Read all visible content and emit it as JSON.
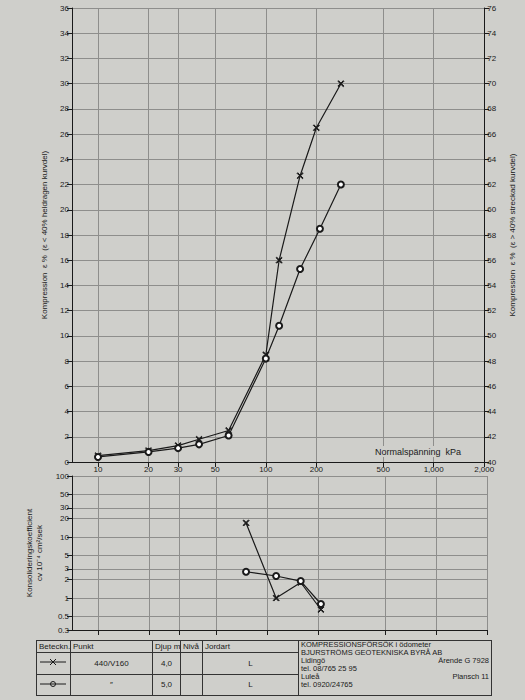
{
  "chart_data": [
    {
      "type": "line",
      "ylabel": "Kompression  ε %  (ε < 40% heldragen kurvdel)",
      "y2label": "Kompression  ε %  (ε > 40% streckad kurvdel)",
      "xlabel": "Normalspänning  kPa",
      "log": "x",
      "grid": true,
      "xlim": [
        7,
        2000
      ],
      "xticks": [
        10,
        20,
        30,
        50,
        100,
        200,
        500,
        1000,
        2000
      ],
      "ylim": [
        0,
        36
      ],
      "yticks": [
        0,
        2,
        4,
        6,
        8,
        10,
        12,
        14,
        16,
        18,
        20,
        22,
        24,
        26,
        28,
        30,
        32,
        34,
        36
      ],
      "y2lim": [
        40,
        76
      ],
      "y2ticks": [
        40,
        42,
        44,
        46,
        48,
        50,
        52,
        54,
        56,
        58,
        60,
        62,
        64,
        66,
        68,
        70,
        72,
        74,
        76
      ],
      "series": [
        {
          "marker": "cross",
          "color": "#1a1a1a",
          "x": [
            10,
            20,
            30,
            40,
            60,
            100,
            120,
            160,
            200,
            280
          ],
          "values": [
            0.5,
            0.9,
            1.3,
            1.8,
            2.5,
            8.5,
            16,
            22.7,
            26.5,
            30
          ]
        },
        {
          "marker": "circle",
          "color": "#1a1a1a",
          "x": [
            10,
            20,
            30,
            40,
            60,
            100,
            120,
            160,
            210,
            280
          ],
          "values": [
            0.4,
            0.8,
            1.1,
            1.4,
            2.1,
            8.2,
            10.8,
            15.3,
            18.5,
            22
          ]
        }
      ]
    },
    {
      "type": "line",
      "ylabel": "Konsolideringskoefficient cv 10⁻⁴ cm²/sek",
      "log": true,
      "grid": true,
      "tick_labels": "y",
      "xlim": [
        7,
        2000
      ],
      "xticks": [
        10,
        20,
        30,
        50,
        100,
        200,
        500,
        1000,
        2000
      ],
      "ylim": [
        0.3,
        100
      ],
      "yticks": [
        0.3,
        0.5,
        1,
        2,
        3,
        5,
        10,
        20,
        30,
        50,
        100
      ],
      "series": [
        {
          "marker": "cross",
          "color": "#1a1a1a",
          "x": [
            75,
            113,
            158,
            208
          ],
          "values": [
            17,
            1.0,
            1.8,
            0.65
          ]
        },
        {
          "marker": "circle",
          "color": "#1a1a1a",
          "x": [
            75,
            113,
            158,
            208
          ],
          "values": [
            2.7,
            2.3,
            1.9,
            0.8
          ]
        }
      ]
    }
  ],
  "footer": {
    "headers": [
      "Beteckn.",
      "Punkt",
      "Djup m",
      "Nivå",
      "Jordart"
    ],
    "rows": [
      {
        "marker": "cross",
        "punkt": "440/V160",
        "djup": "4,0",
        "niva": "",
        "jordart": "L"
      },
      {
        "marker": "circle",
        "punkt": "″",
        "djup": "5,0",
        "niva": "",
        "jordart": "L"
      }
    ],
    "title": "KOMPRESSIONSFÖRSÖK i ödometer",
    "company": "BJURSTRÖMS GEOTEKNISKA BYRÅ AB",
    "office1": "Lidingö",
    "tel1": "tel. 08/765 25 95",
    "office2": "Luleå",
    "tel2": "tel. 0920/24765",
    "arende": "Ärende  G 7928",
    "plansch": "Plansch  11"
  }
}
